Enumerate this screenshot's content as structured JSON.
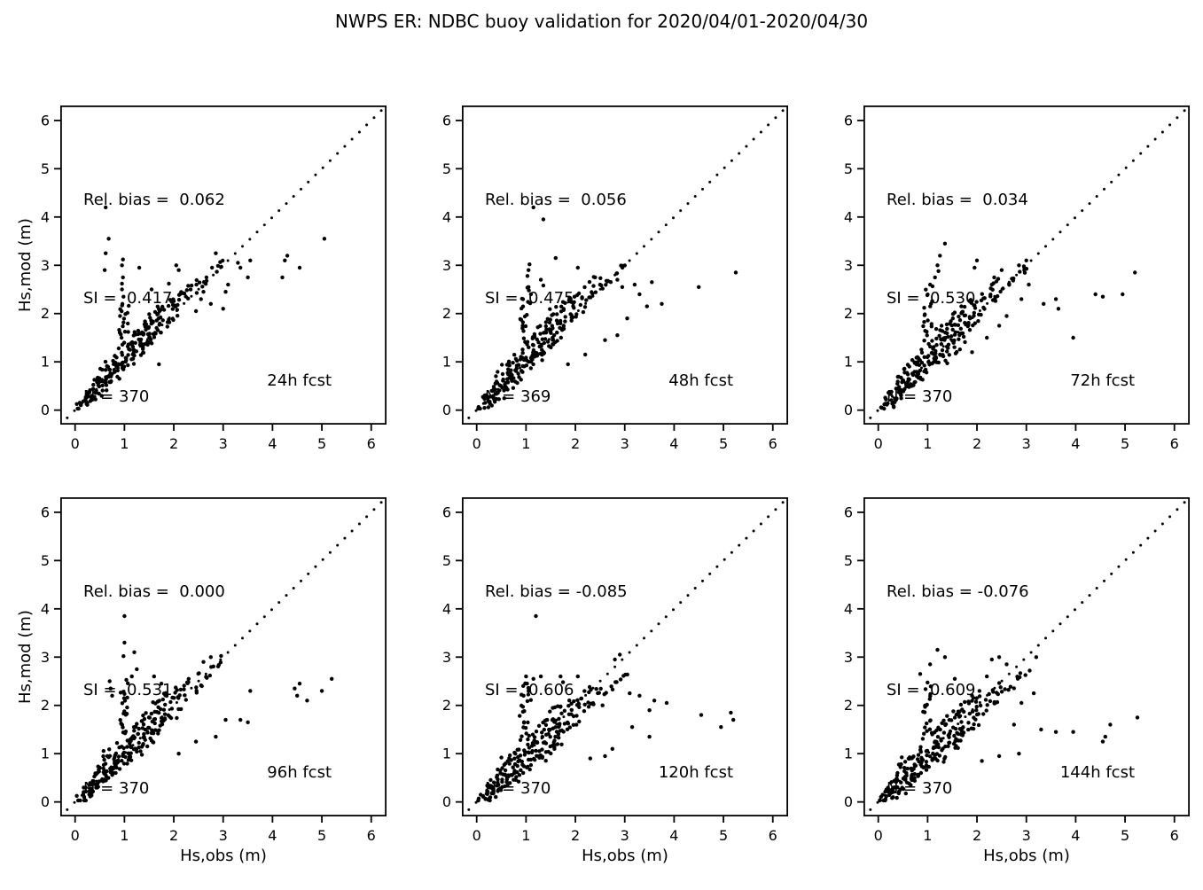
{
  "title": "NWPS ER: NDBC buoy validation for 2020/04/01-2020/04/30",
  "colors": {
    "marker": "#000000",
    "text": "#000000",
    "background": "#ffffff"
  },
  "chart_data": {
    "type": "scatter",
    "grid": {
      "rows": 2,
      "cols": 3
    },
    "xlabel": "Hs,obs (m)",
    "ylabel": "Hs,mod (m)",
    "xticks": [
      0,
      1,
      2,
      3,
      4,
      5,
      6
    ],
    "yticks": [
      0,
      1,
      2,
      3,
      4,
      5,
      6
    ],
    "xlim": [
      -0.3,
      6.31
    ],
    "ylim": [
      -0.3,
      6.31
    ],
    "identity_line": true,
    "marker_color": "#000000",
    "panels": [
      {
        "label": "24h fcst",
        "stats": {
          "rel_bias": 0.062,
          "si": 0.417,
          "n": 370
        },
        "lines": [
          "Rel. bias =  0.062",
          "SI =  0.417",
          "N = 370"
        ],
        "seed": 11,
        "spread": 0.85,
        "bias": 0.05,
        "outliers": [
          [
            0.62,
            4.2
          ],
          [
            0.68,
            3.55
          ],
          [
            0.6,
            2.9
          ],
          [
            0.62,
            3.25
          ],
          [
            0.95,
            2.5
          ],
          [
            0.95,
            2.62
          ],
          [
            0.97,
            2.75
          ],
          [
            0.96,
            2.2
          ],
          [
            0.98,
            2.35
          ],
          [
            0.95,
            3.0
          ],
          [
            0.97,
            3.12
          ],
          [
            1.3,
            2.95
          ],
          [
            1.55,
            2.5
          ],
          [
            1.9,
            2.62
          ],
          [
            2.1,
            2.9
          ],
          [
            2.05,
            3.0
          ],
          [
            2.85,
            3.25
          ],
          [
            3.3,
            3.05
          ],
          [
            3.35,
            2.95
          ],
          [
            3.55,
            3.1
          ],
          [
            3.5,
            2.75
          ],
          [
            4.2,
            2.75
          ],
          [
            4.25,
            3.1
          ],
          [
            4.3,
            3.2
          ],
          [
            4.55,
            2.95
          ],
          [
            5.05,
            3.55
          ],
          [
            2.55,
            2.3
          ],
          [
            3.0,
            2.1
          ],
          [
            2.6,
            2.45
          ],
          [
            3.05,
            2.45
          ],
          [
            2.75,
            2.2
          ],
          [
            1.7,
            0.95
          ],
          [
            2.45,
            2.05
          ],
          [
            3.1,
            2.6
          ]
        ]
      },
      {
        "label": "48h fcst",
        "stats": {
          "rel_bias": 0.056,
          "si": 0.475,
          "n": 369
        },
        "lines": [
          "Rel. bias =  0.056",
          "SI =  0.475",
          "N = 369"
        ],
        "seed": 22,
        "spread": 1.05,
        "bias": 0.04,
        "outliers": [
          [
            1.15,
            4.2
          ],
          [
            1.35,
            3.95
          ],
          [
            1.6,
            3.15
          ],
          [
            1.05,
            2.9
          ],
          [
            1.07,
            3.02
          ],
          [
            1.03,
            2.78
          ],
          [
            1.05,
            2.55
          ],
          [
            1.1,
            2.4
          ],
          [
            1.3,
            2.7
          ],
          [
            1.35,
            2.58
          ],
          [
            2.05,
            2.95
          ],
          [
            2.4,
            2.75
          ],
          [
            2.5,
            2.6
          ],
          [
            2.85,
            2.7
          ],
          [
            2.95,
            2.55
          ],
          [
            3.2,
            2.6
          ],
          [
            3.3,
            2.4
          ],
          [
            3.55,
            2.65
          ],
          [
            3.45,
            2.15
          ],
          [
            3.75,
            2.2
          ],
          [
            4.5,
            2.55
          ],
          [
            5.25,
            2.85
          ],
          [
            3.05,
            1.9
          ],
          [
            2.85,
            1.55
          ],
          [
            2.6,
            1.45
          ],
          [
            1.85,
            0.95
          ],
          [
            2.2,
            1.15
          ]
        ]
      },
      {
        "label": "72h fcst",
        "stats": {
          "rel_bias": 0.034,
          "si": 0.53,
          "n": 370
        },
        "lines": [
          "Rel. bias =  0.034",
          "SI =  0.530",
          "N = 370"
        ],
        "seed": 33,
        "spread": 1.1,
        "bias": 0.02,
        "outliers": [
          [
            1.35,
            3.45
          ],
          [
            1.25,
            3.2
          ],
          [
            1.2,
            3.0
          ],
          [
            1.22,
            2.88
          ],
          [
            1.15,
            2.75
          ],
          [
            1.05,
            2.6
          ],
          [
            2.0,
            3.1
          ],
          [
            1.95,
            2.95
          ],
          [
            2.3,
            2.6
          ],
          [
            2.35,
            2.75
          ],
          [
            2.5,
            2.9
          ],
          [
            2.85,
            3.0
          ],
          [
            3.0,
            3.1
          ],
          [
            3.05,
            2.6
          ],
          [
            2.9,
            2.3
          ],
          [
            3.35,
            2.2
          ],
          [
            3.6,
            2.3
          ],
          [
            3.65,
            2.1
          ],
          [
            3.95,
            1.5
          ],
          [
            4.4,
            2.4
          ],
          [
            4.55,
            2.35
          ],
          [
            4.95,
            2.4
          ],
          [
            5.2,
            2.85
          ],
          [
            2.6,
            1.95
          ],
          [
            2.2,
            1.5
          ],
          [
            1.9,
            1.2
          ],
          [
            2.45,
            1.75
          ]
        ]
      },
      {
        "label": "96h fcst",
        "stats": {
          "rel_bias": 0.0,
          "si": 0.531,
          "n": 370
        },
        "lines": [
          "Rel. bias =  0.000",
          "SI =  0.531",
          "N = 370"
        ],
        "seed": 44,
        "spread": 1.1,
        "bias": 0.0,
        "outliers": [
          [
            1.0,
            3.85
          ],
          [
            1.0,
            3.3
          ],
          [
            0.98,
            3.02
          ],
          [
            1.2,
            3.1
          ],
          [
            1.25,
            2.75
          ],
          [
            1.15,
            2.6
          ],
          [
            0.7,
            2.5
          ],
          [
            0.72,
            2.35
          ],
          [
            0.75,
            2.2
          ],
          [
            1.75,
            2.45
          ],
          [
            1.6,
            2.6
          ],
          [
            2.3,
            2.55
          ],
          [
            2.6,
            2.9
          ],
          [
            2.75,
            3.0
          ],
          [
            3.05,
            1.7
          ],
          [
            3.35,
            1.7
          ],
          [
            3.5,
            1.65
          ],
          [
            2.85,
            1.35
          ],
          [
            4.45,
            2.35
          ],
          [
            4.5,
            2.2
          ],
          [
            4.55,
            2.45
          ],
          [
            4.7,
            2.1
          ],
          [
            5.0,
            2.3
          ],
          [
            5.2,
            2.55
          ],
          [
            2.45,
            1.25
          ],
          [
            2.1,
            1.0
          ],
          [
            3.55,
            2.3
          ]
        ]
      },
      {
        "label": "120h fcst",
        "stats": {
          "rel_bias": -0.085,
          "si": 0.606,
          "n": 370
        },
        "lines": [
          "Rel. bias = -0.085",
          "SI =  0.606",
          "N = 370"
        ],
        "seed": 55,
        "spread": 1.15,
        "bias": -0.09,
        "outliers": [
          [
            1.2,
            3.85
          ],
          [
            1.0,
            2.6
          ],
          [
            1.02,
            2.45
          ],
          [
            1.05,
            2.3
          ],
          [
            1.15,
            2.55
          ],
          [
            1.3,
            2.6
          ],
          [
            0.95,
            2.2
          ],
          [
            1.7,
            2.6
          ],
          [
            1.75,
            2.48
          ],
          [
            2.05,
            2.6
          ],
          [
            2.8,
            2.95
          ],
          [
            2.9,
            3.05
          ],
          [
            3.1,
            2.25
          ],
          [
            3.3,
            2.2
          ],
          [
            2.55,
            2.0
          ],
          [
            3.5,
            1.9
          ],
          [
            3.6,
            2.1
          ],
          [
            3.85,
            2.05
          ],
          [
            4.55,
            1.8
          ],
          [
            4.95,
            1.55
          ],
          [
            5.15,
            1.85
          ],
          [
            5.2,
            1.7
          ],
          [
            3.5,
            1.35
          ],
          [
            2.6,
            0.95
          ],
          [
            2.75,
            1.1
          ],
          [
            2.3,
            0.9
          ],
          [
            3.15,
            1.55
          ]
        ]
      },
      {
        "label": "144h fcst",
        "stats": {
          "rel_bias": -0.076,
          "si": 0.609,
          "n": 370
        },
        "lines": [
          "Rel. bias = -0.076",
          "SI =  0.609",
          "N = 370"
        ],
        "seed": 66,
        "spread": 1.15,
        "bias": -0.08,
        "outliers": [
          [
            1.2,
            3.15
          ],
          [
            1.35,
            3.0
          ],
          [
            1.05,
            2.85
          ],
          [
            0.85,
            2.65
          ],
          [
            1.55,
            2.55
          ],
          [
            2.3,
            2.95
          ],
          [
            2.45,
            3.0
          ],
          [
            2.2,
            2.6
          ],
          [
            2.6,
            2.85
          ],
          [
            3.2,
            3.0
          ],
          [
            2.05,
            2.3
          ],
          [
            5.25,
            1.75
          ],
          [
            4.7,
            1.6
          ],
          [
            4.55,
            1.25
          ],
          [
            4.6,
            1.35
          ],
          [
            3.95,
            1.45
          ],
          [
            3.3,
            1.5
          ],
          [
            3.6,
            1.45
          ],
          [
            2.85,
            1.0
          ],
          [
            2.45,
            0.95
          ],
          [
            2.1,
            0.85
          ],
          [
            3.15,
            2.25
          ],
          [
            2.9,
            2.05
          ],
          [
            1.9,
            2.2
          ],
          [
            2.75,
            1.6
          ]
        ]
      }
    ],
    "cluster_jitter": 0.16,
    "cluster_repeat": 2,
    "base_cluster": [
      [
        0.05,
        0.02
      ],
      [
        0.1,
        0.08
      ],
      [
        0.15,
        0.2
      ],
      [
        0.18,
        0.12
      ],
      [
        0.2,
        0.25
      ],
      [
        0.22,
        0.1
      ],
      [
        0.25,
        0.3
      ],
      [
        0.28,
        0.22
      ],
      [
        0.3,
        0.15
      ],
      [
        0.3,
        0.38
      ],
      [
        0.32,
        0.28
      ],
      [
        0.35,
        0.42
      ],
      [
        0.35,
        0.2
      ],
      [
        0.38,
        0.33
      ],
      [
        0.4,
        0.5
      ],
      [
        0.4,
        0.28
      ],
      [
        0.42,
        0.6
      ],
      [
        0.45,
        0.38
      ],
      [
        0.45,
        0.7
      ],
      [
        0.48,
        0.45
      ],
      [
        0.5,
        0.55
      ],
      [
        0.5,
        0.3
      ],
      [
        0.52,
        0.68
      ],
      [
        0.55,
        0.48
      ],
      [
        0.55,
        0.85
      ],
      [
        0.58,
        0.6
      ],
      [
        0.6,
        0.42
      ],
      [
        0.6,
        0.75
      ],
      [
        0.62,
        0.55
      ],
      [
        0.65,
        0.68
      ],
      [
        0.65,
        0.95
      ],
      [
        0.68,
        0.5
      ],
      [
        0.7,
        0.62
      ],
      [
        0.7,
        0.88
      ],
      [
        0.72,
        0.75
      ],
      [
        0.75,
        0.58
      ],
      [
        0.75,
        1.0
      ],
      [
        0.78,
        0.7
      ],
      [
        0.8,
        0.85
      ],
      [
        0.8,
        0.6
      ],
      [
        0.82,
        1.05
      ],
      [
        0.85,
        0.78
      ],
      [
        0.85,
        0.95
      ],
      [
        0.88,
        0.65
      ],
      [
        0.9,
        0.9
      ],
      [
        0.9,
        1.15
      ],
      [
        0.92,
        0.8
      ],
      [
        0.95,
        1.0
      ],
      [
        0.95,
        1.35
      ],
      [
        0.95,
        1.6
      ],
      [
        0.95,
        1.8
      ],
      [
        0.98,
        2.0
      ],
      [
        0.98,
        2.2
      ],
      [
        1.0,
        0.85
      ],
      [
        1.0,
        1.05
      ],
      [
        1.0,
        1.5
      ],
      [
        1.0,
        1.7
      ],
      [
        1.0,
        1.9
      ],
      [
        1.02,
        2.1
      ],
      [
        1.02,
        2.35
      ],
      [
        1.05,
        1.1
      ],
      [
        1.05,
        0.9
      ],
      [
        1.08,
        1.25
      ],
      [
        1.1,
        1.0
      ],
      [
        1.1,
        1.4
      ],
      [
        1.12,
        1.2
      ],
      [
        1.15,
        0.95
      ],
      [
        1.15,
        1.3
      ],
      [
        1.18,
        1.1
      ],
      [
        1.2,
        1.45
      ],
      [
        1.2,
        1.05
      ],
      [
        1.22,
        1.3
      ],
      [
        1.25,
        1.15
      ],
      [
        1.25,
        1.55
      ],
      [
        1.28,
        1.35
      ],
      [
        1.3,
        1.2
      ],
      [
        1.3,
        1.6
      ],
      [
        1.32,
        1.05
      ],
      [
        1.35,
        1.4
      ],
      [
        1.35,
        1.7
      ],
      [
        1.38,
        1.25
      ],
      [
        1.4,
        1.5
      ],
      [
        1.4,
        1.1
      ],
      [
        1.42,
        1.65
      ],
      [
        1.45,
        1.35
      ],
      [
        1.45,
        1.8
      ],
      [
        1.48,
        1.55
      ],
      [
        1.5,
        1.4
      ],
      [
        1.5,
        1.75
      ],
      [
        1.52,
        1.25
      ],
      [
        1.55,
        1.6
      ],
      [
        1.55,
        1.95
      ],
      [
        1.58,
        1.45
      ],
      [
        1.6,
        1.7
      ],
      [
        1.6,
        1.3
      ],
      [
        1.62,
        1.85
      ],
      [
        1.65,
        1.55
      ],
      [
        1.65,
        2.0
      ],
      [
        1.68,
        1.7
      ],
      [
        1.7,
        1.45
      ],
      [
        1.7,
        1.9
      ],
      [
        1.72,
        1.6
      ],
      [
        1.75,
        1.8
      ],
      [
        1.75,
        2.1
      ],
      [
        1.8,
        1.65
      ],
      [
        1.8,
        1.95
      ],
      [
        1.85,
        1.75
      ],
      [
        1.85,
        2.15
      ],
      [
        1.9,
        1.85
      ],
      [
        1.9,
        2.2
      ],
      [
        1.95,
        2.0
      ],
      [
        2.0,
        2.1
      ],
      [
        2.0,
        1.8
      ],
      [
        2.05,
        2.25
      ],
      [
        2.1,
        1.95
      ],
      [
        2.1,
        2.3
      ],
      [
        2.15,
        2.1
      ],
      [
        2.2,
        2.25
      ],
      [
        2.25,
        2.4
      ],
      [
        2.3,
        2.2
      ],
      [
        2.35,
        2.5
      ],
      [
        2.4,
        2.3
      ],
      [
        2.45,
        2.6
      ],
      [
        2.5,
        2.45
      ],
      [
        2.6,
        2.5
      ],
      [
        2.7,
        2.6
      ],
      [
        2.8,
        2.75
      ],
      [
        2.9,
        2.85
      ],
      [
        3.0,
        2.95
      ]
    ]
  }
}
